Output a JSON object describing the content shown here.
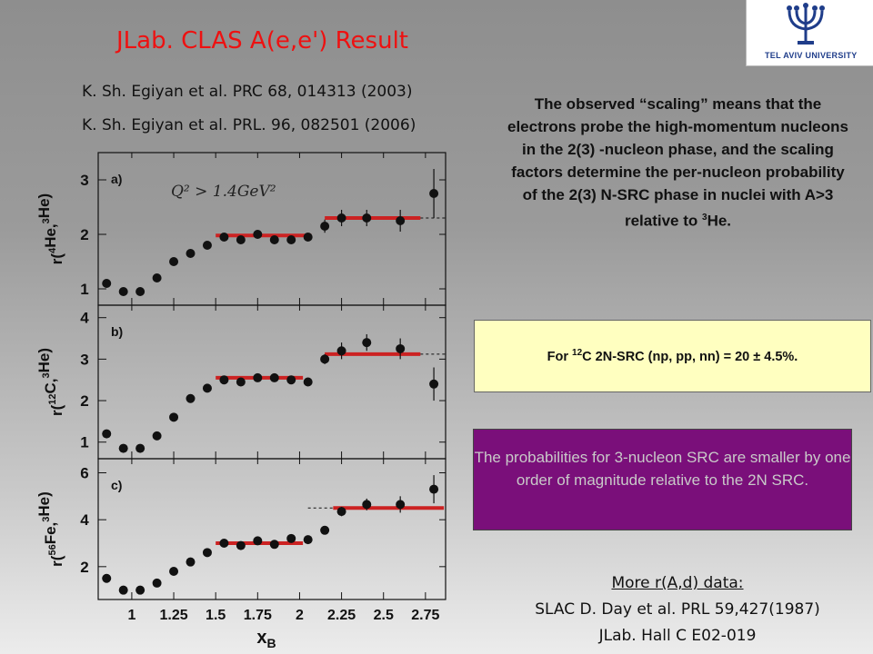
{
  "title": "JLab. CLAS A(e,e') Result",
  "references": [
    "K. Sh.  Egiyan et al. PRC 68, 014313 (2003)",
    "K. Sh.  Egiyan et al. PRL. 96, 082501 (2006)"
  ],
  "logo": {
    "text": "TEL AVIV UNIVERSITY"
  },
  "scaling_text": {
    "main": "The observed “scaling” means that the electrons probe the high-momentum nucleons in the  2(3) -nucleon phase, and the scaling factors determine the per-nucleon probability of the 2(3) N-SRC phase in nuclei with A>3 relative to ",
    "sup": "3",
    "tail": "He."
  },
  "yellow_box": {
    "pre": "For ",
    "sup": "12",
    "post": "C 2N-SRC (np, pp, nn)  = 20 ± 4.5%."
  },
  "purple_box": {
    "text": "The probabilities for 3-nucleon SRC are smaller by one order of  magnitude relative to the 2N SRC."
  },
  "more_data": {
    "title": "More r(A,d) data:",
    "lines": [
      "SLAC   D. Day et al. PRL 59,427(1987)",
      "JLab.   Hall C  E02-019"
    ]
  },
  "colors": {
    "title": "#ee1111",
    "fit_line": "#cc2222",
    "yellow_box": "#ffffc0",
    "purple_box": "#7a0f7a"
  },
  "chart_data": {
    "type": "scatter",
    "xlabel": "x",
    "xlabel_sub": "B",
    "xlim": [
      0.8,
      2.87
    ],
    "x_ticks": [
      1,
      1.25,
      1.5,
      1.75,
      2,
      2.25,
      2.5,
      2.75
    ],
    "x_tick_labels": [
      "1",
      "1.25",
      "1.5",
      "1.75",
      "2",
      "2.25",
      "2.5",
      "2.75"
    ],
    "panels": [
      {
        "label": "a)",
        "annotation": "Q² > 1.4GeV²",
        "ylabel": {
          "pre": "r(",
          "sup1": "4",
          "mid": "He,",
          "sup2": "3",
          "post": "He)"
        },
        "ylim": [
          0.7,
          3.5
        ],
        "y_ticks": [
          1,
          2,
          3
        ],
        "x": [
          0.85,
          0.95,
          1.05,
          1.15,
          1.25,
          1.35,
          1.45,
          1.55,
          1.65,
          1.75,
          1.85,
          1.95,
          2.05,
          2.15,
          2.25,
          2.4,
          2.6,
          2.8
        ],
        "y": [
          1.1,
          0.95,
          0.95,
          1.2,
          1.5,
          1.65,
          1.8,
          1.95,
          1.9,
          2.0,
          1.9,
          1.9,
          1.95,
          2.15,
          2.3,
          2.3,
          2.25,
          2.75
        ],
        "yerr": [
          0.05,
          0.05,
          0.05,
          0.05,
          0.05,
          0.05,
          0.05,
          0.05,
          0.05,
          0.05,
          0.05,
          0.05,
          0.05,
          0.12,
          0.15,
          0.15,
          0.2,
          0.45
        ],
        "fits": [
          {
            "x0": 1.5,
            "x1": 2.07,
            "y": 1.98
          },
          {
            "x0": 2.15,
            "x1": 2.72,
            "y": 2.3
          }
        ],
        "dashed": {
          "x0": 2.72,
          "x1": 2.87,
          "y": 2.3
        }
      },
      {
        "label": "b)",
        "ylabel": {
          "pre": "r(",
          "sup1": "12",
          "mid": "C,",
          "sup2": "3",
          "post": "He)"
        },
        "ylim": [
          0.6,
          4.3
        ],
        "y_ticks": [
          1,
          2,
          3,
          4
        ],
        "x": [
          0.85,
          0.95,
          1.05,
          1.15,
          1.25,
          1.35,
          1.45,
          1.55,
          1.65,
          1.75,
          1.85,
          1.95,
          2.05,
          2.15,
          2.25,
          2.4,
          2.6,
          2.8
        ],
        "y": [
          1.2,
          0.85,
          0.85,
          1.15,
          1.6,
          2.05,
          2.3,
          2.5,
          2.45,
          2.55,
          2.55,
          2.5,
          2.45,
          3.0,
          3.2,
          3.4,
          3.25,
          2.4
        ],
        "yerr": [
          0.05,
          0.05,
          0.05,
          0.05,
          0.05,
          0.05,
          0.05,
          0.05,
          0.05,
          0.05,
          0.05,
          0.05,
          0.05,
          0.12,
          0.2,
          0.2,
          0.25,
          0.4
        ],
        "fits": [
          {
            "x0": 1.5,
            "x1": 2.02,
            "y": 2.55
          },
          {
            "x0": 2.15,
            "x1": 2.72,
            "y": 3.12
          }
        ],
        "dashed": {
          "x0": 2.72,
          "x1": 2.87,
          "y": 3.12
        }
      },
      {
        "label": "c)",
        "ylabel": {
          "pre": "r(",
          "sup1": "56",
          "mid": "Fe,",
          "sup2": "3",
          "post": "He)"
        },
        "ylim": [
          0.6,
          6.6
        ],
        "y_ticks": [
          2,
          4,
          6
        ],
        "x": [
          0.85,
          0.95,
          1.05,
          1.15,
          1.25,
          1.35,
          1.45,
          1.55,
          1.65,
          1.75,
          1.85,
          1.95,
          2.05,
          2.15,
          2.25,
          2.4,
          2.6,
          2.8
        ],
        "y": [
          1.5,
          1.0,
          1.0,
          1.3,
          1.8,
          2.2,
          2.6,
          3.0,
          2.9,
          3.1,
          2.95,
          3.2,
          3.15,
          3.55,
          4.35,
          4.65,
          4.65,
          5.3
        ],
        "yerr": [
          0.05,
          0.05,
          0.05,
          0.05,
          0.05,
          0.05,
          0.05,
          0.05,
          0.05,
          0.05,
          0.05,
          0.05,
          0.05,
          0.15,
          0.2,
          0.25,
          0.35,
          0.6
        ],
        "fits": [
          {
            "x0": 1.5,
            "x1": 2.02,
            "y": 3.0
          },
          {
            "x0": 2.2,
            "x1": 2.86,
            "y": 4.5
          }
        ],
        "dashed": {
          "x0": 2.05,
          "x1": 2.2,
          "y": 4.5
        }
      }
    ]
  }
}
